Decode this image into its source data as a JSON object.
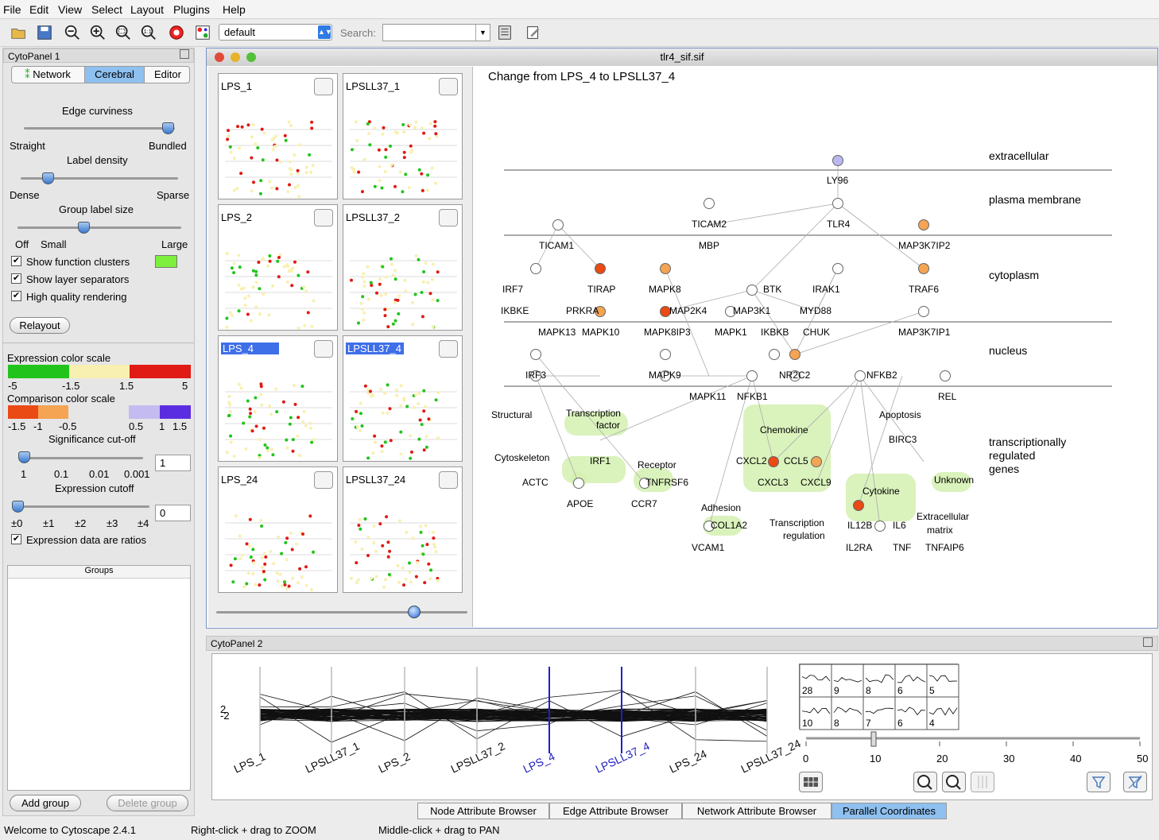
{
  "menu": [
    "File",
    "Edit",
    "View",
    "Select",
    "Layout",
    "Plugins",
    "Help"
  ],
  "toolbar": {
    "layout_value": "default",
    "search_label": "Search:",
    "search_value": ""
  },
  "cp1": {
    "title": "CytoPanel 1",
    "tabs": [
      "Network",
      "Cerebral",
      "Editor"
    ],
    "active_tab": "Cerebral",
    "edge_curviness": "Edge curviness",
    "straight": "Straight",
    "bundled": "Bundled",
    "label_density": "Label density",
    "dense": "Dense",
    "sparse": "Sparse",
    "group_label_size": "Group label size",
    "off": "Off",
    "small": "Small",
    "large": "Large",
    "show_function_clusters": "Show function clusters",
    "show_layer_separators": "Show layer separators",
    "high_quality": "High quality rendering",
    "relayout": "Relayout",
    "expr_scale": "Expression color scale",
    "expr_ticks": [
      "-5",
      "-1.5",
      "1.5",
      "5"
    ],
    "comp_scale": "Comparison color scale",
    "comp_ticks": [
      "-1.5",
      "-1",
      "-0.5",
      "0.5",
      "1",
      "1.5"
    ],
    "sig_cutoff": "Significance cut-off",
    "sig_ticks": [
      "1",
      "0.1",
      "0.01",
      "0.001"
    ],
    "sig_value": "1",
    "expr_cutoff": "Expression cutoff",
    "expr_cut_ticks": [
      "±0",
      "±1",
      "±2",
      "±3",
      "±4"
    ],
    "expr_cut_value": "0",
    "ratios": "Expression data are ratios",
    "groups": "Groups",
    "add_group": "Add group",
    "delete_group": "Delete group",
    "colors": {
      "green": "#22c41c",
      "pale": "#f8f0b0",
      "red": "#e01a14",
      "darkorange": "#ea4a14",
      "orange": "#f4a452",
      "lavender": "#c4bcf0",
      "violet": "#5a2ee0",
      "cluster": "#7cf03c"
    }
  },
  "netwin": {
    "title": "tlr4_sif.sif",
    "graph_title": "Change from LPS_4 to LPSLL37_4"
  },
  "thumbs": [
    "LPS_1",
    "LPSLL37_1",
    "LPS_2",
    "LPSLL37_2",
    "LPS_4",
    "LPSLL37_4",
    "LPS_24",
    "LPSLL37_24"
  ],
  "layers": [
    "extracellular",
    "plasma membrane",
    "cytoplasm",
    "nucleus",
    "transcriptionally",
    "regulated",
    "genes"
  ],
  "nodes": [
    "LY96",
    "TICAM2",
    "TLR4",
    "MAP3K7IP2",
    "TICAM1",
    "MBP",
    "IRF7",
    "TIRAP",
    "MAPK8",
    "BTK",
    "IRAK1",
    "TRAF6",
    "IKBKE",
    "PRKRA",
    "MAP2K4",
    "MAP3K1",
    "MYD88",
    "MAPK13",
    "MAPK10",
    "MAPK8IP3",
    "MAPK1",
    "IKBKB",
    "CHUK",
    "MAP3K7IP1",
    "IRF3",
    "MAPK9",
    "NR2C2",
    "NFKB2",
    "MAPK11",
    "NFKB1",
    "REL",
    "IRF1",
    "ACTC",
    "APOE",
    "TNFRSF6",
    "CCR7",
    "CXCL2",
    "CCL5",
    "CXCL3",
    "CXCL9",
    "BIRC3",
    "COL1A2",
    "VCAM1",
    "IL12B",
    "IL6",
    "IL2RA",
    "TNF",
    "TNFAIP6"
  ],
  "clusters": [
    "Structural",
    "Transcription",
    "factor",
    "Cytoskeleton",
    "Receptor",
    "Chemokine",
    "Apoptosis",
    "Adhesion",
    "Transcription",
    "regulation",
    "Cytokine",
    "Unknown",
    "Extracellular",
    "matrix"
  ],
  "cp2": {
    "title": "CytoPanel 2",
    "axes": [
      "LPS_1",
      "LPSLL37_1",
      "LPS_2",
      "LPSLL37_2",
      "LPS_4",
      "LPSLL37_4",
      "LPS_24",
      "LPSLL37_24"
    ],
    "y_top": "2",
    "y_bot": "-2",
    "cells": [
      "28",
      "9",
      "8",
      "6",
      "5",
      "10",
      "8",
      "7",
      "6",
      "4"
    ],
    "scale": [
      "0",
      "10",
      "20",
      "30",
      "40",
      "50"
    ]
  },
  "bottom_tabs": [
    "Node Attribute Browser",
    "Edge Attribute Browser",
    "Network Attribute Browser",
    "Parallel Coordinates"
  ],
  "status": [
    "Welcome to Cytoscape 2.4.1",
    "Right-click + drag  to  ZOOM",
    "Middle-click + drag  to  PAN"
  ]
}
